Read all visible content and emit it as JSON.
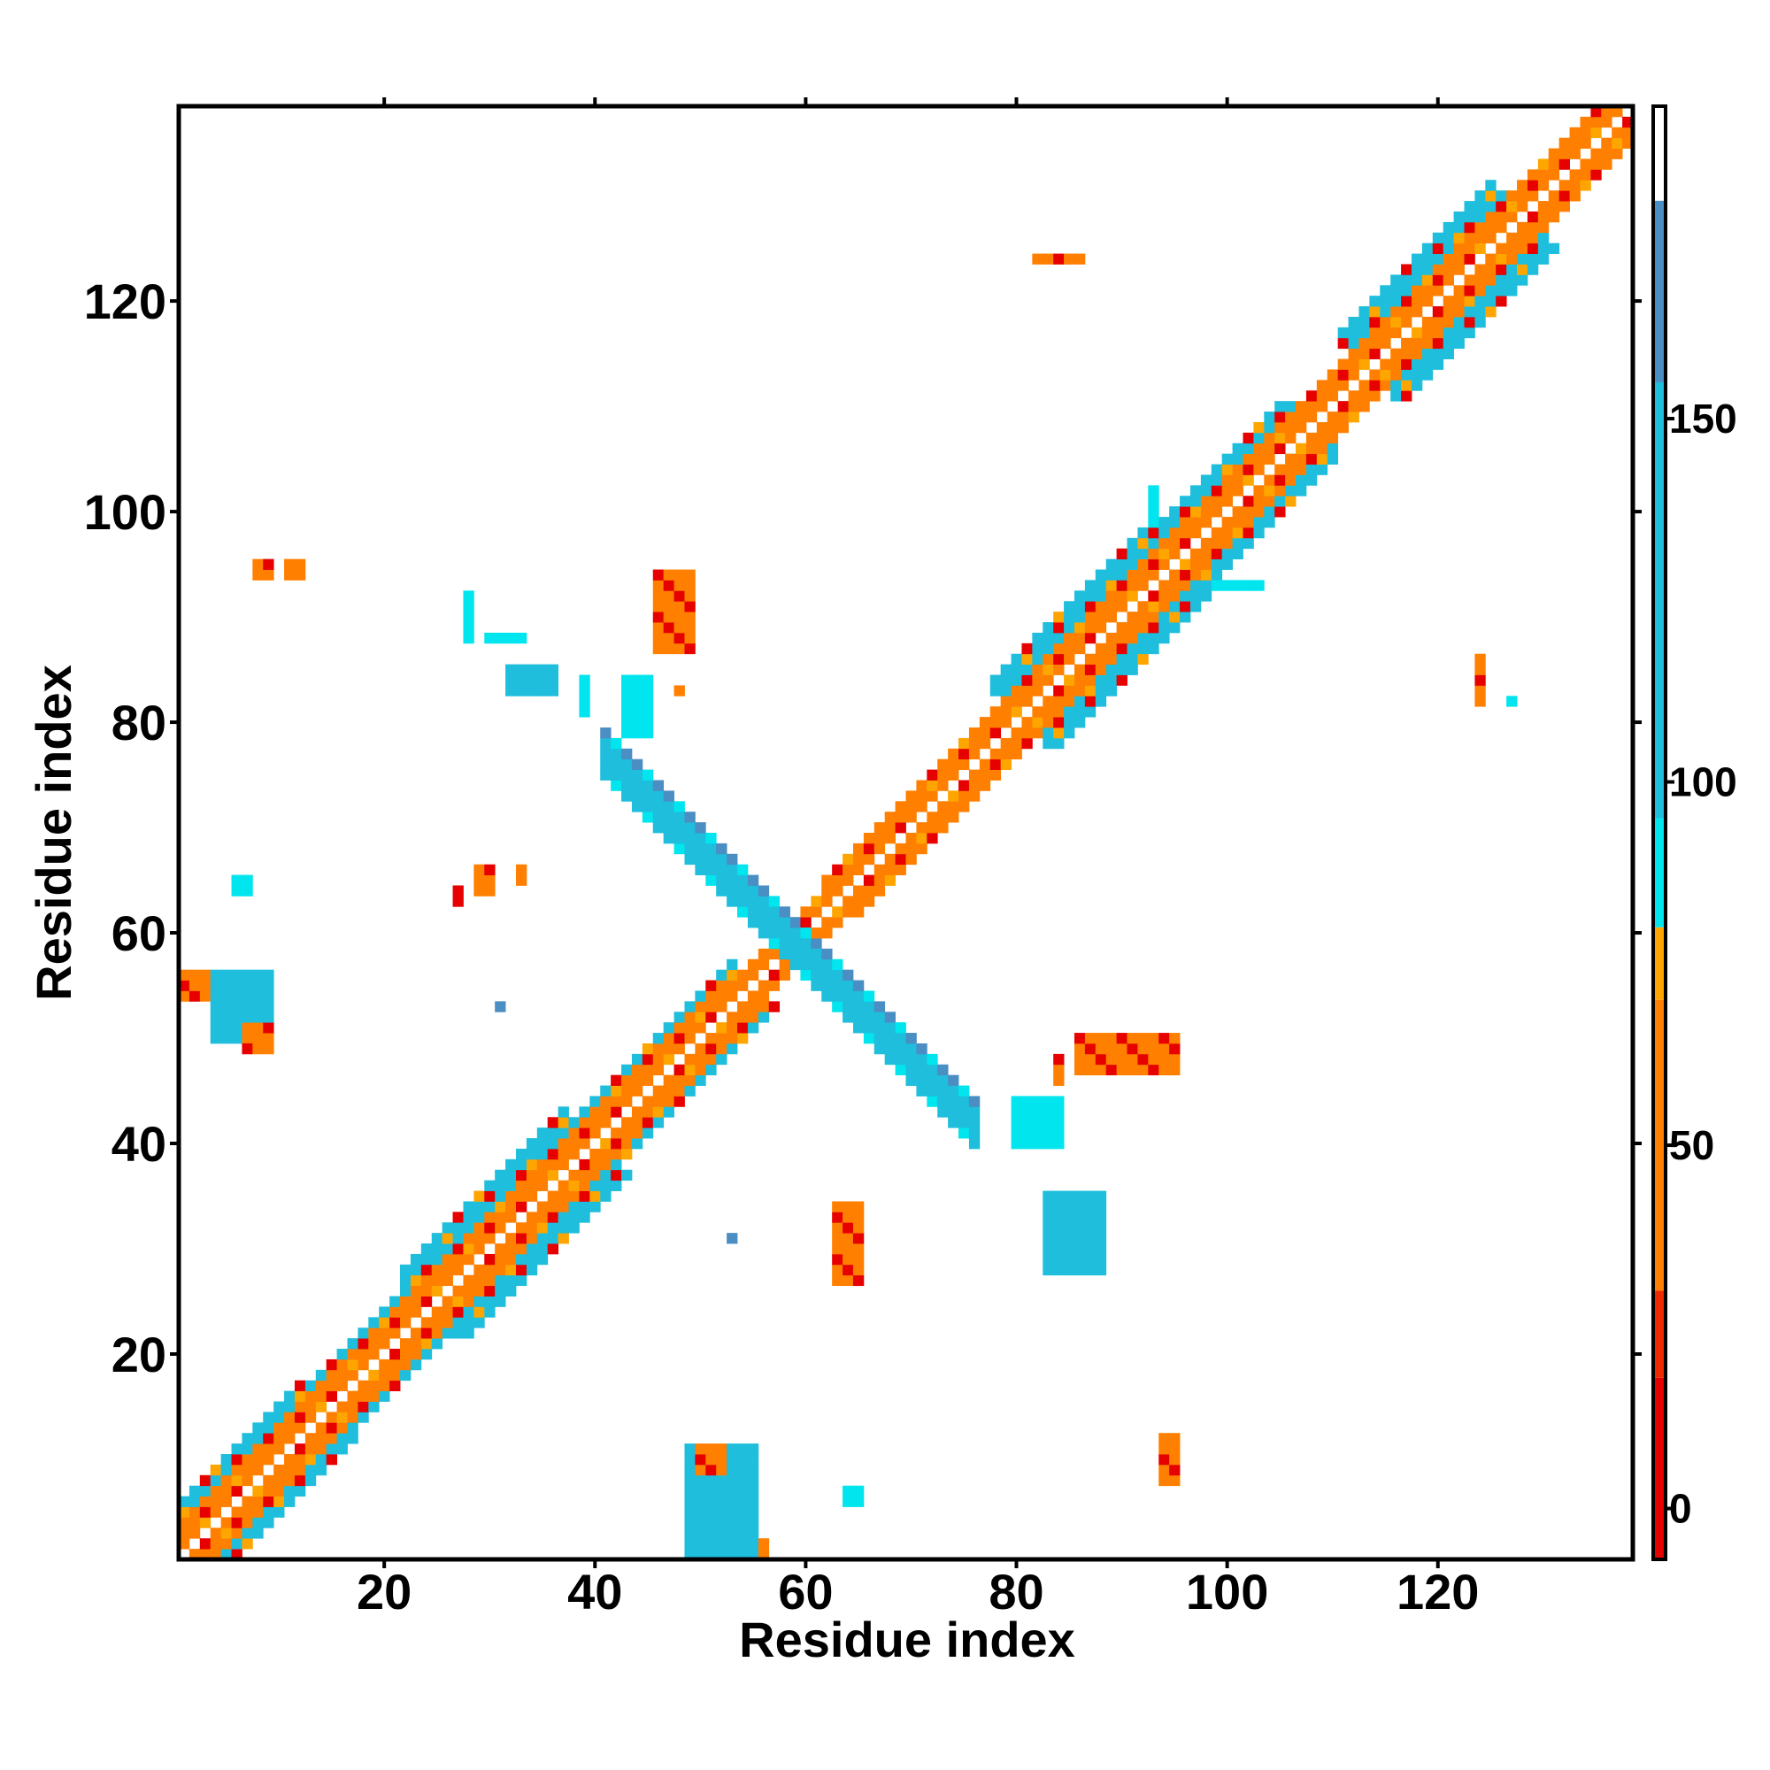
{
  "chart_data": {
    "type": "heatmap",
    "xlabel": "Residue index",
    "ylabel": "Residue index",
    "xlim": [
      0.5,
      138.5
    ],
    "ylim": [
      0.5,
      138.5
    ],
    "xticks": [
      20,
      40,
      60,
      80,
      100,
      120
    ],
    "yticks": [
      20,
      40,
      60,
      80,
      100,
      120
    ],
    "grid": false,
    "colorbar": {
      "position": "right",
      "range": [
        -7,
        193
      ],
      "ticks": [
        0,
        50,
        100,
        150
      ],
      "bands": [
        {
          "from": -7,
          "to": 18,
          "color": "#e60000"
        },
        {
          "from": 18,
          "to": 30,
          "color": "#f02a00"
        },
        {
          "from": 30,
          "to": 70,
          "color": "#ff7f00"
        },
        {
          "from": 70,
          "to": 80,
          "color": "#ffa500"
        },
        {
          "from": 80,
          "to": 95,
          "color": "#00e5ee"
        },
        {
          "from": 95,
          "to": 155,
          "color": "#1ebedc"
        },
        {
          "from": 155,
          "to": 180,
          "color": "#4a8ec4"
        },
        {
          "from": 180,
          "to": 193,
          "color": "#ffffff"
        }
      ]
    },
    "diagonal_band": {
      "segments": [
        {
          "from": 1,
          "to": 15,
          "halfwidth": 5
        },
        {
          "from": 15,
          "to": 24,
          "halfwidth": 4
        },
        {
          "from": 24,
          "to": 40,
          "halfwidth": 6
        },
        {
          "from": 40,
          "to": 55,
          "halfwidth": 4
        },
        {
          "from": 55,
          "to": 63,
          "halfwidth": 2
        },
        {
          "from": 63,
          "to": 80,
          "halfwidth": 3
        },
        {
          "from": 80,
          "to": 95,
          "halfwidth": 6
        },
        {
          "from": 95,
          "to": 108,
          "halfwidth": 5
        },
        {
          "from": 108,
          "to": 113,
          "halfwidth": 3
        },
        {
          "from": 113,
          "to": 128,
          "halfwidth": 6
        },
        {
          "from": 128,
          "to": 138,
          "halfwidth": 3
        }
      ],
      "dominant_value_near": 40,
      "dominant_value_far": 100
    },
    "antidiagonal_band": {
      "from": 41,
      "to": 76,
      "sum": 118,
      "halfwidth": 2,
      "value": 130
    },
    "clusters": [
      {
        "i": [
          1,
          3
        ],
        "j": [
          54,
          56
        ],
        "value": 45
      },
      {
        "i": [
          4,
          9
        ],
        "j": [
          50,
          56
        ],
        "value": 120
      },
      {
        "i": [
          7,
          9
        ],
        "j": [
          49,
          51
        ],
        "value": 55
      },
      {
        "i": [
          6,
          7
        ],
        "j": [
          64,
          65
        ],
        "value": 90
      },
      {
        "i": [
          8,
          9
        ],
        "j": [
          94,
          95
        ],
        "value": 40
      },
      {
        "i": [
          11,
          12
        ],
        "j": [
          94,
          95
        ],
        "value": 40
      },
      {
        "i": [
          27,
          27
        ],
        "j": [
          63,
          64
        ],
        "value": 15
      },
      {
        "i": [
          29,
          30
        ],
        "j": [
          64,
          66
        ],
        "value": 45
      },
      {
        "i": [
          33,
          33
        ],
        "j": [
          65,
          66
        ],
        "value": 30
      },
      {
        "i": [
          31,
          31
        ],
        "j": [
          53,
          53
        ],
        "value": 170
      },
      {
        "i": [
          28,
          28
        ],
        "j": [
          88,
          92
        ],
        "value": 90
      },
      {
        "i": [
          30,
          33
        ],
        "j": [
          88,
          88
        ],
        "value": 90
      },
      {
        "i": [
          32,
          36
        ],
        "j": [
          83,
          85
        ],
        "value": 100
      },
      {
        "i": [
          39,
          39
        ],
        "j": [
          81,
          84
        ],
        "value": 90
      },
      {
        "i": [
          43,
          45
        ],
        "j": [
          79,
          84
        ],
        "value": 90
      },
      {
        "i": [
          46,
          49
        ],
        "j": [
          87,
          94
        ],
        "value": 40
      },
      {
        "i": [
          48,
          48
        ],
        "j": [
          83,
          83
        ],
        "value": 30
      },
      {
        "i": [
          49,
          55
        ],
        "j": [
          1,
          11
        ],
        "value": 110
      },
      {
        "i": [
          50,
          52
        ],
        "j": [
          9,
          11
        ],
        "value": 40
      },
      {
        "i": [
          56,
          56
        ],
        "j": [
          1,
          2
        ],
        "value": 55
      },
      {
        "i": [
          53,
          53
        ],
        "j": [
          31,
          31
        ],
        "value": 170
      },
      {
        "i": [
          63,
          65
        ],
        "j": [
          27,
          34
        ],
        "value": 35
      },
      {
        "i": [
          64,
          65
        ],
        "j": [
          6,
          7
        ],
        "value": 90
      },
      {
        "i": [
          80,
          84
        ],
        "j": [
          40,
          44
        ],
        "value": 90
      },
      {
        "i": [
          83,
          88
        ],
        "j": [
          28,
          35
        ],
        "value": 95
      },
      {
        "i": [
          84,
          84
        ],
        "j": [
          46,
          48
        ],
        "value": 45
      },
      {
        "i": [
          86,
          95
        ],
        "j": [
          47,
          50
        ],
        "value": 40
      },
      {
        "i": [
          82,
          86
        ],
        "j": [
          124,
          124
        ],
        "value": 40
      },
      {
        "i": [
          93,
          93
        ],
        "j": [
          99,
          102
        ],
        "value": 90
      },
      {
        "i": [
          94,
          95
        ],
        "j": [
          8,
          12
        ],
        "value": 30
      },
      {
        "i": [
          99,
          103
        ],
        "j": [
          93,
          93
        ],
        "value": 90
      },
      {
        "i": [
          124,
          124
        ],
        "j": [
          82,
          86
        ],
        "value": 45
      },
      {
        "i": [
          127,
          127
        ],
        "j": [
          82,
          82
        ],
        "value": 90
      }
    ]
  }
}
